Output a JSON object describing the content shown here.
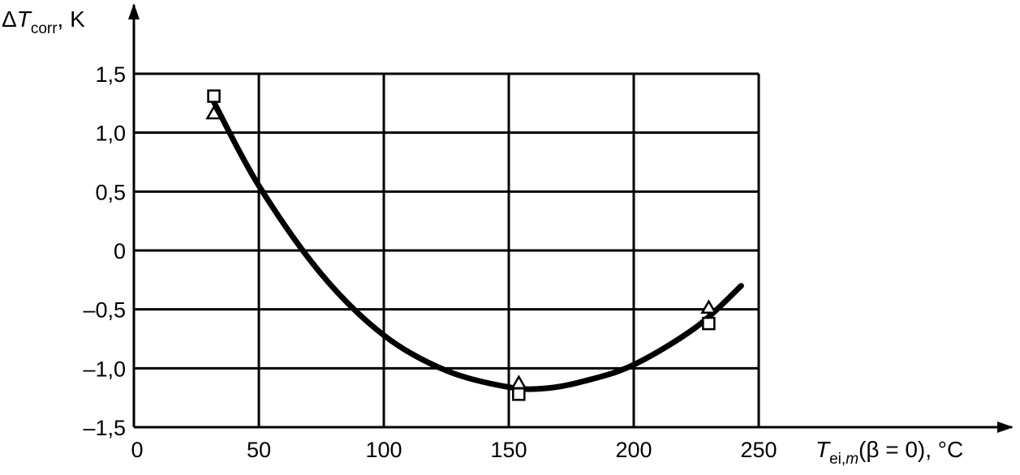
{
  "chart_data": {
    "type": "scatter",
    "xlabel": {
      "main": "T",
      "sub": "ei,",
      "sub_italic": "m",
      "tail": "(β = 0), °C"
    },
    "ylabel": {
      "prefix": "Δ",
      "main": "T",
      "sub": "corr",
      "tail": ", K"
    },
    "xlim": [
      0,
      250
    ],
    "ylim": [
      -1.5,
      1.5
    ],
    "x_ticks": [
      {
        "value": 0,
        "label": "0"
      },
      {
        "value": 50,
        "label": "50"
      },
      {
        "value": 100,
        "label": "100"
      },
      {
        "value": 150,
        "label": "150"
      },
      {
        "value": 200,
        "label": "200"
      },
      {
        "value": 250,
        "label": "250"
      }
    ],
    "y_ticks": [
      {
        "value": 1.5,
        "label": "1,5"
      },
      {
        "value": 1.0,
        "label": "1,0"
      },
      {
        "value": 0.5,
        "label": "0,5"
      },
      {
        "value": 0,
        "label": "0"
      },
      {
        "value": -0.5,
        "label": "–0,5"
      },
      {
        "value": -1.0,
        "label": "–1,0"
      },
      {
        "value": -1.5,
        "label": "–1,5"
      }
    ],
    "grid": true,
    "series": [
      {
        "marker": "square",
        "points": [
          [
            32,
            1.31
          ],
          [
            154,
            -1.22
          ],
          [
            230,
            -0.62
          ]
        ]
      },
      {
        "marker": "triangle",
        "points": [
          [
            32,
            1.17
          ],
          [
            154,
            -1.12
          ],
          [
            230,
            -0.48
          ]
        ]
      }
    ],
    "fit_curve": {
      "style": "solid-thick",
      "points": [
        [
          32,
          1.26
        ],
        [
          50,
          0.55
        ],
        [
          75,
          -0.2
        ],
        [
          100,
          -0.72
        ],
        [
          125,
          -1.02
        ],
        [
          150,
          -1.16
        ],
        [
          165,
          -1.17
        ],
        [
          180,
          -1.11
        ],
        [
          200,
          -0.97
        ],
        [
          225,
          -0.65
        ],
        [
          243,
          -0.3
        ]
      ]
    }
  }
}
